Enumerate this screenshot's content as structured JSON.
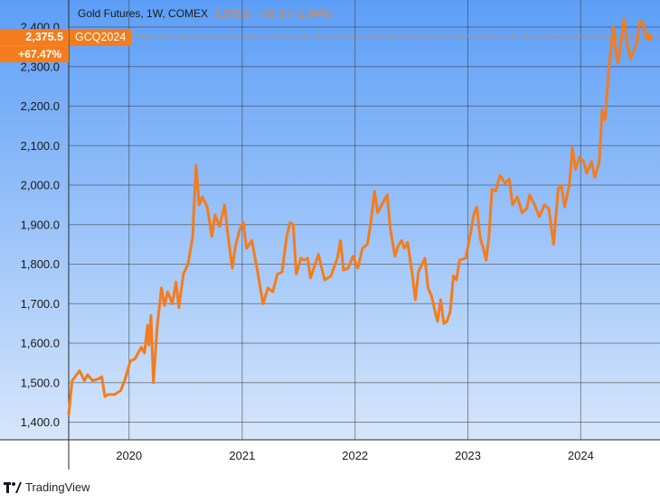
{
  "header": {
    "instrument": "Gold Futures, 1W, COMEX",
    "last": "2,375.5",
    "change": "−37.3 (−1.54%)"
  },
  "price_tag": {
    "value": "2,375.5",
    "percent": "+67.47%",
    "symbol": "GCQ2024"
  },
  "brand": {
    "name": "TradingView"
  },
  "colors": {
    "line": "#f47c1c",
    "plot_top": "#5c9ef7",
    "plot_bottom": "#d6e6fb",
    "grid": "#3a3a3a"
  },
  "chart_data": {
    "type": "line",
    "title": "Gold Futures, 1W, COMEX",
    "xlabel": "",
    "ylabel": "",
    "x_ticks": [
      "2020",
      "2021",
      "2022",
      "2023",
      "2024"
    ],
    "y_ticks": [
      "1,400.0",
      "1,500.0",
      "1,600.0",
      "1,700.0",
      "1,800.0",
      "1,900.0",
      "2,000.0",
      "2,100.0",
      "2,200.0",
      "2,300.0",
      "2,400.0"
    ],
    "ylim": [
      1385,
      2430
    ],
    "xlim": [
      "2019-06-20",
      "2024-08-15"
    ],
    "grid": true,
    "series": [
      {
        "name": "GCQ2024",
        "points": [
          [
            "2019-06-20",
            1420
          ],
          [
            "2019-07-01",
            1505
          ],
          [
            "2019-07-25",
            1530
          ],
          [
            "2019-08-10",
            1505
          ],
          [
            "2019-08-20",
            1520
          ],
          [
            "2019-09-05",
            1505
          ],
          [
            "2019-09-25",
            1510
          ],
          [
            "2019-10-05",
            1515
          ],
          [
            "2019-10-15",
            1465
          ],
          [
            "2019-10-25",
            1470
          ],
          [
            "2019-11-15",
            1470
          ],
          [
            "2019-12-05",
            1480
          ],
          [
            "2019-12-20",
            1510
          ],
          [
            "2020-01-05",
            1555
          ],
          [
            "2020-01-20",
            1560
          ],
          [
            "2020-02-10",
            1590
          ],
          [
            "2020-02-20",
            1575
          ],
          [
            "2020-03-01",
            1645
          ],
          [
            "2020-03-05",
            1595
          ],
          [
            "2020-03-12",
            1670
          ],
          [
            "2020-03-20",
            1500
          ],
          [
            "2020-04-01",
            1640
          ],
          [
            "2020-04-15",
            1740
          ],
          [
            "2020-04-25",
            1695
          ],
          [
            "2020-05-05",
            1730
          ],
          [
            "2020-05-20",
            1700
          ],
          [
            "2020-06-01",
            1755
          ],
          [
            "2020-06-10",
            1690
          ],
          [
            "2020-06-25",
            1775
          ],
          [
            "2020-07-10",
            1800
          ],
          [
            "2020-07-25",
            1870
          ],
          [
            "2020-08-05",
            2050
          ],
          [
            "2020-08-15",
            1950
          ],
          [
            "2020-08-25",
            1970
          ],
          [
            "2020-09-10",
            1945
          ],
          [
            "2020-09-25",
            1870
          ],
          [
            "2020-10-05",
            1925
          ],
          [
            "2020-10-20",
            1895
          ],
          [
            "2020-11-05",
            1950
          ],
          [
            "2020-11-15",
            1880
          ],
          [
            "2020-11-30",
            1790
          ],
          [
            "2020-12-10",
            1845
          ],
          [
            "2020-12-25",
            1890
          ],
          [
            "2021-01-05",
            1905
          ],
          [
            "2021-01-15",
            1840
          ],
          [
            "2021-02-01",
            1860
          ],
          [
            "2021-02-20",
            1780
          ],
          [
            "2021-03-05",
            1720
          ],
          [
            "2021-03-10",
            1700
          ],
          [
            "2021-03-25",
            1740
          ],
          [
            "2021-04-10",
            1730
          ],
          [
            "2021-04-25",
            1775
          ],
          [
            "2021-05-10",
            1780
          ],
          [
            "2021-05-25",
            1870
          ],
          [
            "2021-06-05",
            1905
          ],
          [
            "2021-06-15",
            1900
          ],
          [
            "2021-06-25",
            1775
          ],
          [
            "2021-07-10",
            1815
          ],
          [
            "2021-07-20",
            1810
          ],
          [
            "2021-08-01",
            1815
          ],
          [
            "2021-08-10",
            1765
          ],
          [
            "2021-08-25",
            1800
          ],
          [
            "2021-09-05",
            1825
          ],
          [
            "2021-09-15",
            1790
          ],
          [
            "2021-09-25",
            1760
          ],
          [
            "2021-10-15",
            1770
          ],
          [
            "2021-11-05",
            1815
          ],
          [
            "2021-11-15",
            1860
          ],
          [
            "2021-11-25",
            1785
          ],
          [
            "2021-12-10",
            1790
          ],
          [
            "2021-12-25",
            1820
          ],
          [
            "2022-01-10",
            1790
          ],
          [
            "2022-01-25",
            1840
          ],
          [
            "2022-02-10",
            1850
          ],
          [
            "2022-02-20",
            1900
          ],
          [
            "2022-03-05",
            1985
          ],
          [
            "2022-03-15",
            1930
          ],
          [
            "2022-03-25",
            1945
          ],
          [
            "2022-04-15",
            1975
          ],
          [
            "2022-04-25",
            1890
          ],
          [
            "2022-05-10",
            1820
          ],
          [
            "2022-05-20",
            1845
          ],
          [
            "2022-06-01",
            1860
          ],
          [
            "2022-06-10",
            1840
          ],
          [
            "2022-06-20",
            1855
          ],
          [
            "2022-07-05",
            1775
          ],
          [
            "2022-07-15",
            1710
          ],
          [
            "2022-07-25",
            1780
          ],
          [
            "2022-08-15",
            1815
          ],
          [
            "2022-08-25",
            1740
          ],
          [
            "2022-09-05",
            1720
          ],
          [
            "2022-09-20",
            1670
          ],
          [
            "2022-09-25",
            1655
          ],
          [
            "2022-10-05",
            1710
          ],
          [
            "2022-10-15",
            1650
          ],
          [
            "2022-10-25",
            1655
          ],
          [
            "2022-11-05",
            1680
          ],
          [
            "2022-11-15",
            1770
          ],
          [
            "2022-11-25",
            1760
          ],
          [
            "2022-12-05",
            1810
          ],
          [
            "2022-12-25",
            1815
          ],
          [
            "2023-01-10",
            1880
          ],
          [
            "2023-01-20",
            1925
          ],
          [
            "2023-01-30",
            1945
          ],
          [
            "2023-02-10",
            1865
          ],
          [
            "2023-02-20",
            1840
          ],
          [
            "2023-03-01",
            1810
          ],
          [
            "2023-03-10",
            1870
          ],
          [
            "2023-03-20",
            1990
          ],
          [
            "2023-04-01",
            1985
          ],
          [
            "2023-04-15",
            2025
          ],
          [
            "2023-05-01",
            2005
          ],
          [
            "2023-05-15",
            2015
          ],
          [
            "2023-05-25",
            1950
          ],
          [
            "2023-06-10",
            1970
          ],
          [
            "2023-06-25",
            1930
          ],
          [
            "2023-07-10",
            1940
          ],
          [
            "2023-07-20",
            1975
          ],
          [
            "2023-08-05",
            1950
          ],
          [
            "2023-08-20",
            1920
          ],
          [
            "2023-09-05",
            1950
          ],
          [
            "2023-09-20",
            1940
          ],
          [
            "2023-10-05",
            1850
          ],
          [
            "2023-10-20",
            1990
          ],
          [
            "2023-10-30",
            2000
          ],
          [
            "2023-11-10",
            1945
          ],
          [
            "2023-11-25",
            2000
          ],
          [
            "2023-12-05",
            2095
          ],
          [
            "2023-12-15",
            2040
          ],
          [
            "2023-12-28",
            2070
          ],
          [
            "2024-01-10",
            2060
          ],
          [
            "2024-01-20",
            2030
          ],
          [
            "2024-02-05",
            2060
          ],
          [
            "2024-02-15",
            2020
          ],
          [
            "2024-03-01",
            2060
          ],
          [
            "2024-03-10",
            2190
          ],
          [
            "2024-03-20",
            2165
          ],
          [
            "2024-04-01",
            2300
          ],
          [
            "2024-04-15",
            2400
          ],
          [
            "2024-04-25",
            2330
          ],
          [
            "2024-05-01",
            2310
          ],
          [
            "2024-05-10",
            2360
          ],
          [
            "2024-05-20",
            2420
          ],
          [
            "2024-06-01",
            2350
          ],
          [
            "2024-06-10",
            2320
          ],
          [
            "2024-06-20",
            2340
          ],
          [
            "2024-07-01",
            2360
          ],
          [
            "2024-07-10",
            2415
          ],
          [
            "2024-07-20",
            2410
          ],
          [
            "2024-07-30",
            2380
          ],
          [
            "2024-08-08",
            2375
          ]
        ]
      }
    ],
    "last_value": 2375.5
  }
}
